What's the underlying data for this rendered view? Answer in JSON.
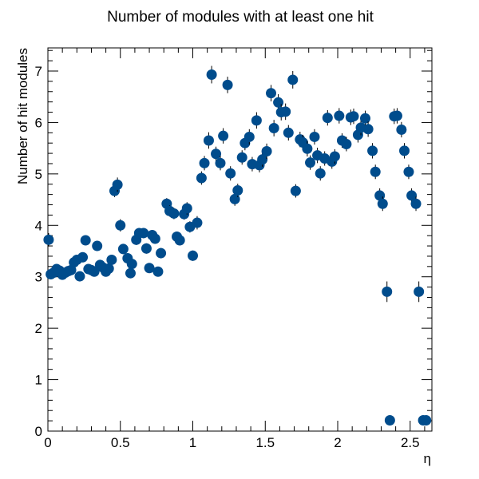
{
  "chart_data": {
    "type": "scatter",
    "title": "Number of modules with at least one hit",
    "xlabel": "η",
    "ylabel": "Number of hit modules",
    "xlim": [
      0,
      2.65
    ],
    "ylim": [
      0,
      7.45
    ],
    "x_ticks": [
      0,
      0.5,
      1,
      1.5,
      2,
      2.5
    ],
    "x_tick_labels": [
      "0",
      "0.5",
      "1",
      "1.5",
      "2",
      "2.5"
    ],
    "y_ticks": [
      0,
      1,
      2,
      3,
      4,
      5,
      6,
      7
    ],
    "y_tick_labels": [
      "0",
      "1",
      "2",
      "3",
      "4",
      "5",
      "6",
      "7"
    ],
    "marker_color": "#004c8c",
    "grid": false,
    "legend": "none",
    "series": [
      {
        "x": [
          0.005,
          0.02,
          0.04,
          0.06,
          0.08,
          0.1,
          0.12,
          0.14,
          0.16,
          0.18,
          0.2,
          0.22,
          0.24,
          0.26,
          0.28,
          0.3,
          0.32,
          0.34,
          0.36,
          0.38,
          0.4,
          0.42,
          0.44,
          0.46,
          0.48,
          0.5,
          0.52,
          0.55,
          0.57,
          0.58,
          0.61,
          0.63,
          0.66,
          0.68,
          0.7,
          0.72,
          0.74,
          0.76,
          0.78,
          0.82,
          0.84,
          0.87,
          0.89,
          0.91,
          0.94,
          0.96,
          0.98,
          1.0,
          1.03,
          1.06,
          1.08,
          1.11,
          1.13,
          1.16,
          1.19,
          1.21,
          1.24,
          1.26,
          1.29,
          1.31,
          1.34,
          1.36,
          1.39,
          1.41,
          1.44,
          1.46,
          1.48,
          1.51,
          1.54,
          1.56,
          1.59,
          1.61,
          1.64,
          1.66,
          1.69,
          1.71,
          1.74,
          1.76,
          1.79,
          1.81,
          1.84,
          1.86,
          1.88,
          1.91,
          1.93,
          1.96,
          1.98,
          2.01,
          2.03,
          2.06,
          2.09,
          2.11,
          2.14,
          2.16,
          2.19,
          2.21,
          2.24,
          2.26,
          2.29,
          2.31,
          2.34,
          2.36,
          2.39,
          2.41,
          2.44,
          2.46,
          2.49,
          2.51,
          2.54,
          2.56,
          2.59,
          2.61
        ],
        "y": [
          3.72,
          3.05,
          3.08,
          3.15,
          3.12,
          3.04,
          3.08,
          3.11,
          3.13,
          3.28,
          3.33,
          3.01,
          3.38,
          3.71,
          3.15,
          3.13,
          3.1,
          3.6,
          3.23,
          3.18,
          3.1,
          3.16,
          3.33,
          4.67,
          4.79,
          4.0,
          3.54,
          3.36,
          3.07,
          3.25,
          3.72,
          3.85,
          3.85,
          3.55,
          3.17,
          3.81,
          3.74,
          3.1,
          3.46,
          4.42,
          4.28,
          4.23,
          3.78,
          3.71,
          4.22,
          4.33,
          3.97,
          3.41,
          4.05,
          4.92,
          5.21,
          5.65,
          6.93,
          5.39,
          5.21,
          5.74,
          6.73,
          5.01,
          4.51,
          4.68,
          5.32,
          5.6,
          5.72,
          5.19,
          6.04,
          5.17,
          5.28,
          5.44,
          6.57,
          5.89,
          6.39,
          6.2,
          6.21,
          5.8,
          6.83,
          4.67,
          5.67,
          5.61,
          5.49,
          5.22,
          5.72,
          5.36,
          5.01,
          5.3,
          6.09,
          5.24,
          5.34,
          6.13,
          5.65,
          5.58,
          6.1,
          6.12,
          5.76,
          5.9,
          6.08,
          5.87,
          5.45,
          5.04,
          4.58,
          4.42,
          2.71,
          0.21,
          6.12,
          6.13,
          5.86,
          5.45,
          5.04,
          4.58,
          4.42,
          2.71,
          0.21,
          0.21
        ],
        "yerr": [
          0.13,
          0.06,
          0.06,
          0.06,
          0.06,
          0.06,
          0.06,
          0.06,
          0.06,
          0.07,
          0.07,
          0.06,
          0.07,
          0.08,
          0.07,
          0.07,
          0.07,
          0.08,
          0.07,
          0.07,
          0.07,
          0.07,
          0.08,
          0.12,
          0.14,
          0.12,
          0.1,
          0.09,
          0.09,
          0.09,
          0.1,
          0.1,
          0.1,
          0.1,
          0.09,
          0.1,
          0.1,
          0.09,
          0.1,
          0.11,
          0.11,
          0.11,
          0.1,
          0.1,
          0.11,
          0.12,
          0.11,
          0.1,
          0.13,
          0.13,
          0.14,
          0.16,
          0.17,
          0.14,
          0.14,
          0.15,
          0.16,
          0.14,
          0.13,
          0.13,
          0.14,
          0.14,
          0.15,
          0.14,
          0.16,
          0.14,
          0.14,
          0.15,
          0.16,
          0.16,
          0.16,
          0.16,
          0.16,
          0.15,
          0.17,
          0.13,
          0.15,
          0.15,
          0.15,
          0.14,
          0.15,
          0.15,
          0.14,
          0.14,
          0.15,
          0.14,
          0.14,
          0.15,
          0.14,
          0.14,
          0.15,
          0.15,
          0.15,
          0.15,
          0.15,
          0.15,
          0.15,
          0.14,
          0.14,
          0.14,
          0.2,
          0.1,
          0.15,
          0.15,
          0.15,
          0.15,
          0.14,
          0.14,
          0.14,
          0.2,
          0.1,
          0.1
        ]
      }
    ]
  }
}
